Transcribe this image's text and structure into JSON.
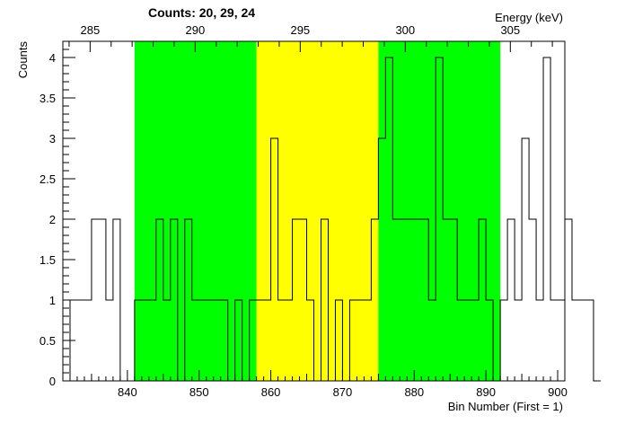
{
  "chart_data": {
    "type": "histogram",
    "title": "Counts:   20,   29,   24",
    "xlabel": "Bin Number (First = 1)",
    "ylabel": "Counts",
    "x2label": "Energy (keV)",
    "xlim": [
      831,
      901
    ],
    "ylim": [
      0,
      4.2
    ],
    "x_ticks": [
      840,
      850,
      860,
      870,
      880,
      890,
      900
    ],
    "y_ticks": [
      0,
      0.5,
      1,
      1.5,
      2,
      2.5,
      3,
      3.5,
      4
    ],
    "y_tick_labels": [
      "0",
      "0.5",
      "1",
      "1.5",
      "2",
      "2.5",
      "3",
      "3.5",
      "4"
    ],
    "x2_ticks": [
      285,
      290,
      295,
      300,
      305
    ],
    "energy_calibration": {
      "bin_at_285": 834.8,
      "bins_per_keV": 2.93
    },
    "regions": [
      {
        "from": 841,
        "to": 858,
        "color": "#00ff00"
      },
      {
        "from": 858,
        "to": 875,
        "color": "#ffff00"
      },
      {
        "from": 875,
        "to": 892,
        "color": "#00ff00"
      }
    ],
    "bins_start": 831,
    "bin_width": 1,
    "counts": [
      0,
      1,
      1,
      1,
      2,
      2,
      1,
      2,
      0,
      0,
      1,
      1,
      1,
      2,
      1,
      2,
      0,
      2,
      1,
      1,
      1,
      1,
      1,
      0,
      1,
      0,
      1,
      1,
      1,
      3,
      1,
      1,
      2,
      2,
      1,
      0,
      2,
      0,
      1,
      0,
      1,
      1,
      1,
      2,
      3,
      4,
      2,
      2,
      2,
      2,
      2,
      1,
      4,
      2,
      2,
      1,
      1,
      1,
      2,
      1,
      0,
      1,
      2,
      1,
      3,
      2,
      1,
      4,
      1,
      1,
      2,
      1,
      1,
      1,
      0
    ]
  }
}
